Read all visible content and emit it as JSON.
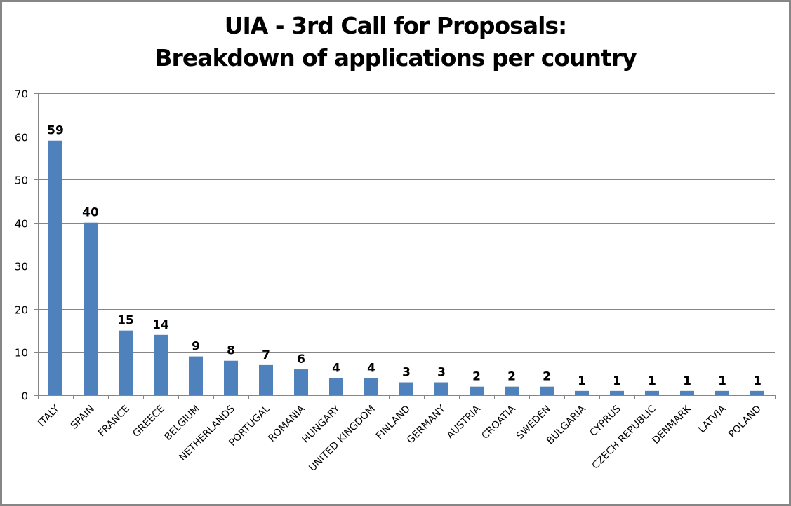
{
  "chart_data": {
    "type": "bar",
    "title": "UIA - 3rd Call for Proposals: Breakdown of applications per country",
    "title_lines": [
      "UIA - 3rd Call for Proposals:",
      "Breakdown of applications per country"
    ],
    "xlabel": "",
    "ylabel": "",
    "categories": [
      "ITALY",
      "SPAIN",
      "FRANCE",
      "GREECE",
      "BELGIUM",
      "NETHERLANDS",
      "PORTUGAL",
      "ROMANIA",
      "HUNGARY",
      "UNITED KINGDOM",
      "FINLAND",
      "GERMANY",
      "AUSTRIA",
      "CROATIA",
      "SWEDEN",
      "BULGARIA",
      "CYPRUS",
      "CZECH REPUBLIC",
      "DENMARK",
      "LATVIA",
      "POLAND"
    ],
    "values": [
      59,
      40,
      15,
      14,
      9,
      8,
      7,
      6,
      4,
      4,
      3,
      3,
      2,
      2,
      2,
      1,
      1,
      1,
      1,
      1,
      1
    ],
    "ylim": [
      0,
      70
    ],
    "yticks": [
      0,
      10,
      20,
      30,
      40,
      50,
      60,
      70
    ],
    "grid": true,
    "legend": null,
    "data_labels": true,
    "bar_color": "#4F81BD"
  }
}
